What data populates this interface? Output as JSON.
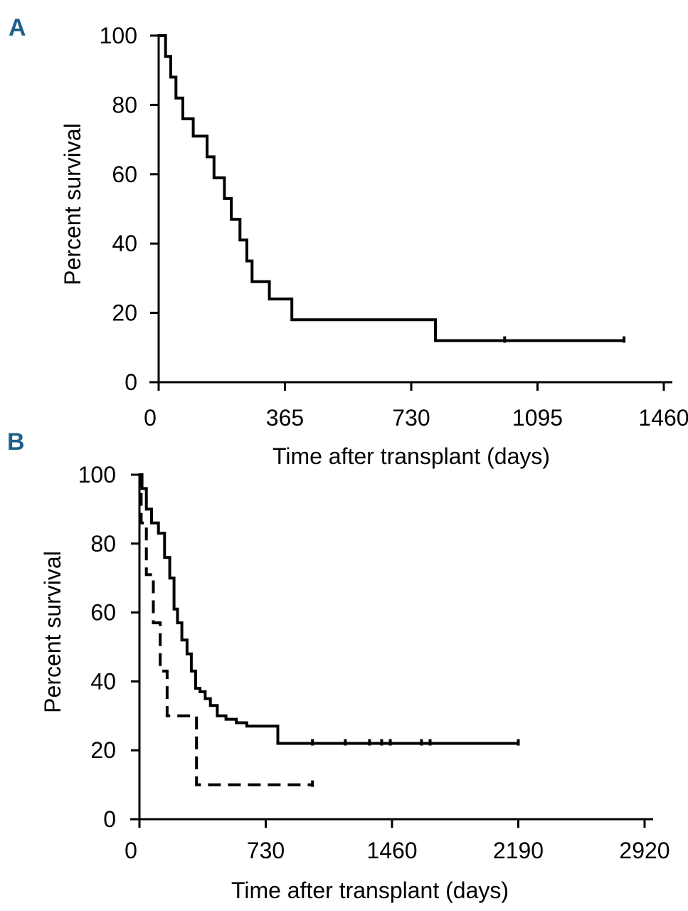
{
  "chart_data": [
    {
      "type": "line",
      "panel_label": "A",
      "xlabel": "Time after transplant (days)",
      "ylabel": "Percent survival",
      "xlim": [
        0,
        1460
      ],
      "ylim": [
        0,
        100
      ],
      "xticks": [
        0,
        365,
        730,
        1095,
        1460
      ],
      "yticks": [
        0,
        20,
        40,
        60,
        80,
        100
      ],
      "series": [
        {
          "name": "survival",
          "style": "solid",
          "x": [
            0,
            20,
            20,
            35,
            35,
            50,
            50,
            70,
            70,
            100,
            100,
            140,
            140,
            160,
            160,
            190,
            190,
            210,
            210,
            235,
            235,
            255,
            255,
            270,
            270,
            320,
            320,
            370,
            370,
            385,
            385,
            425,
            425,
            800,
            800,
            1345
          ],
          "y": [
            100,
            100,
            94,
            94,
            88,
            88,
            82,
            82,
            76,
            76,
            71,
            71,
            65,
            65,
            59,
            59,
            53,
            53,
            47,
            47,
            41,
            41,
            35,
            35,
            29,
            29,
            24,
            24,
            24,
            24,
            18,
            18,
            18,
            18,
            12,
            12
          ],
          "censor_x": [
            1000,
            1345
          ],
          "censor_y": [
            12,
            12
          ]
        }
      ]
    },
    {
      "type": "line",
      "panel_label": "B",
      "xlabel": "Time after transplant (days)",
      "ylabel": "Percent survival",
      "xlim": [
        0,
        2920
      ],
      "ylim": [
        0,
        100
      ],
      "xticks": [
        0,
        730,
        1460,
        2190,
        2920
      ],
      "yticks": [
        0,
        20,
        40,
        60,
        80,
        100
      ],
      "series": [
        {
          "name": "solid",
          "style": "solid",
          "x": [
            0,
            15,
            15,
            40,
            40,
            70,
            70,
            110,
            110,
            145,
            145,
            175,
            175,
            200,
            200,
            220,
            220,
            245,
            245,
            275,
            275,
            300,
            300,
            325,
            325,
            350,
            350,
            380,
            380,
            410,
            410,
            450,
            450,
            500,
            500,
            560,
            560,
            620,
            620,
            680,
            680,
            760,
            760,
            800,
            800,
            2190
          ],
          "y": [
            100,
            100,
            96,
            96,
            90,
            90,
            86,
            86,
            83,
            83,
            76,
            76,
            70,
            70,
            61,
            61,
            57,
            57,
            52,
            52,
            48,
            48,
            43,
            43,
            38,
            38,
            37,
            37,
            35,
            35,
            33,
            33,
            30,
            30,
            29,
            29,
            28,
            28,
            27,
            27,
            27,
            27,
            27,
            27,
            22,
            22
          ],
          "censor_x": [
            1000,
            1190,
            1330,
            1400,
            1450,
            1630,
            1680,
            2190
          ],
          "censor_y": [
            22,
            22,
            22,
            22,
            22,
            22,
            22,
            22
          ]
        },
        {
          "name": "dashed",
          "style": "dashed",
          "x": [
            0,
            10,
            10,
            40,
            40,
            80,
            80,
            120,
            120,
            160,
            160,
            180,
            180,
            200,
            200,
            240,
            240,
            330,
            330,
            1000
          ],
          "y": [
            100,
            100,
            86,
            86,
            71,
            71,
            57,
            57,
            43,
            43,
            30,
            30,
            30,
            30,
            30,
            30,
            30,
            30,
            10,
            10
          ],
          "censor_x": [
            1000
          ],
          "censor_y": [
            10
          ]
        }
      ]
    }
  ]
}
